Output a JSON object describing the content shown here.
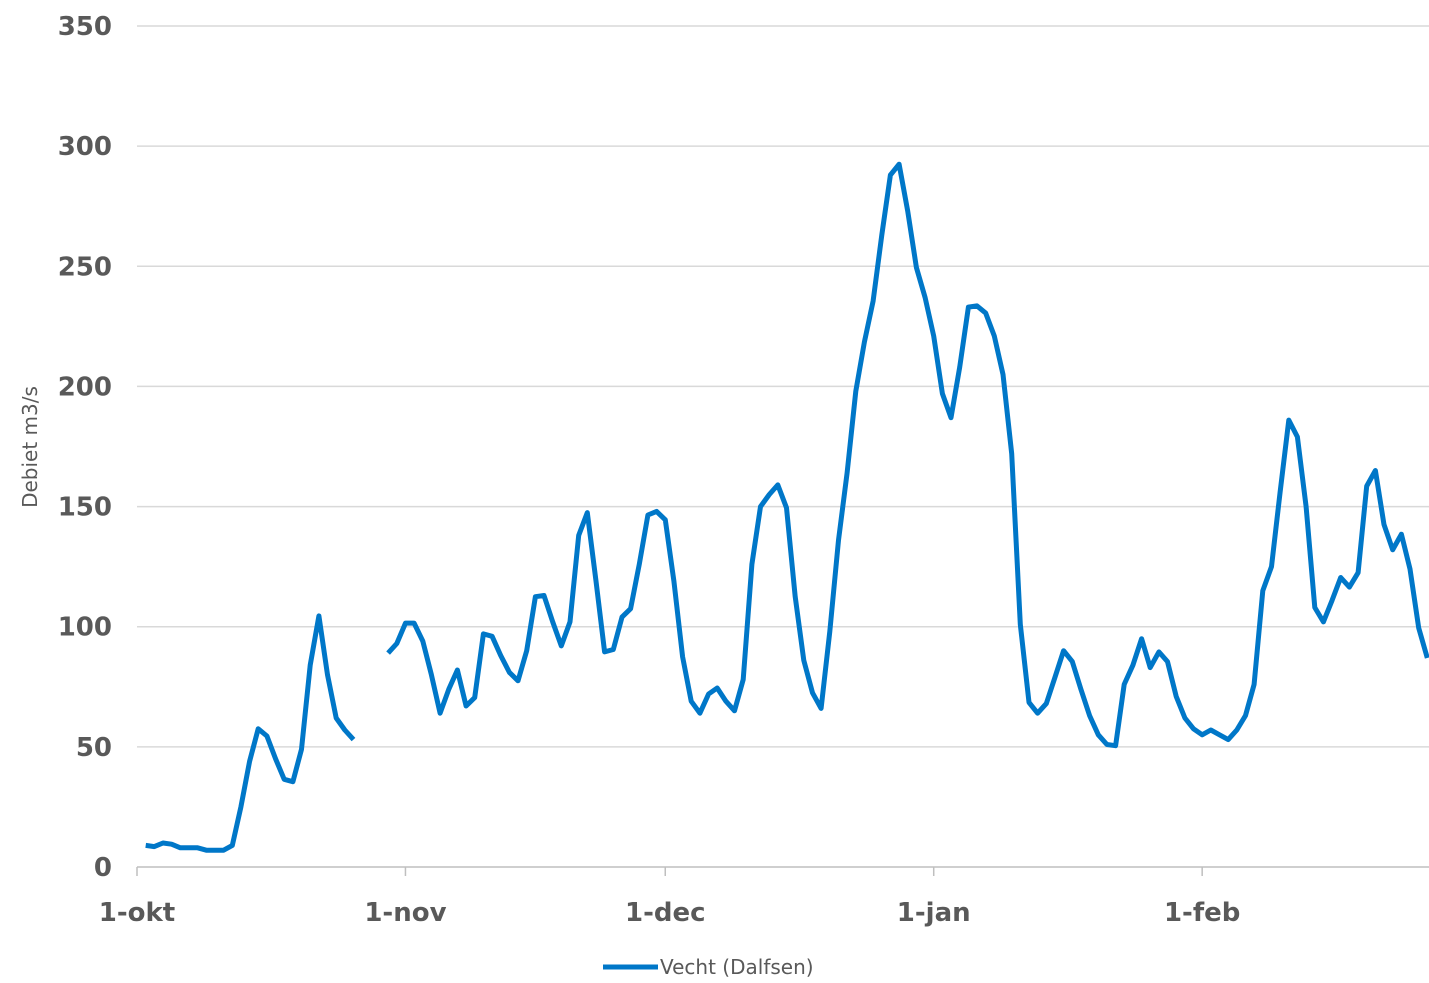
{
  "chart_data": {
    "type": "line",
    "title": "",
    "xlabel": "",
    "ylabel": "Debiet m3/s",
    "ylim": [
      0,
      350
    ],
    "yticks": [
      0,
      50,
      100,
      150,
      200,
      250,
      300,
      350
    ],
    "xlim": [
      "2019-10-01",
      "2020-02-28"
    ],
    "xticks": [
      {
        "label": "1-okt",
        "date": "2019-10-01"
      },
      {
        "label": "1-nov",
        "date": "2019-11-01"
      },
      {
        "label": "1-dec",
        "date": "2019-12-01"
      },
      {
        "label": "1-jan",
        "date": "2020-01-01"
      },
      {
        "label": "1-feb",
        "date": "2020-02-01"
      }
    ],
    "grid": "horizontal",
    "legend_position": "bottom",
    "line_color": "#0077c8",
    "grid_color": "#d9d9d9",
    "axis_color": "#bfbfbf",
    "series": [
      {
        "name": "Vecht (Dalfsen)",
        "color": "#0077c8",
        "points": [
          [
            "2019-10-02",
            9
          ],
          [
            "2019-10-03",
            8.5
          ],
          [
            "2019-10-04",
            10
          ],
          [
            "2019-10-05",
            9.5
          ],
          [
            "2019-10-06",
            8
          ],
          [
            "2019-10-07",
            8
          ],
          [
            "2019-10-08",
            8
          ],
          [
            "2019-10-09",
            7
          ],
          [
            "2019-10-10",
            7
          ],
          [
            "2019-10-11",
            7
          ],
          [
            "2019-10-12",
            9
          ],
          [
            "2019-10-13",
            25
          ],
          [
            "2019-10-14",
            44
          ],
          [
            "2019-10-15",
            57.5
          ],
          [
            "2019-10-16",
            54.5
          ],
          [
            "2019-10-17",
            45
          ],
          [
            "2019-10-18",
            36.5
          ],
          [
            "2019-10-19",
            35.5
          ],
          [
            "2019-10-20",
            49
          ],
          [
            "2019-10-21",
            84
          ],
          [
            "2019-10-22",
            104.5
          ],
          [
            "2019-10-23",
            80
          ],
          [
            "2019-10-24",
            62
          ],
          [
            "2019-10-25",
            57
          ],
          [
            "2019-10-26",
            53
          ],
          null,
          [
            "2019-10-30",
            89
          ],
          [
            "2019-10-31",
            93
          ],
          [
            "2019-11-01",
            101.5
          ],
          [
            "2019-11-02",
            101.5
          ],
          [
            "2019-11-03",
            94
          ],
          [
            "2019-11-04",
            80
          ],
          [
            "2019-11-05",
            64
          ],
          [
            "2019-11-06",
            74
          ],
          [
            "2019-11-07",
            82
          ],
          [
            "2019-11-08",
            67
          ],
          [
            "2019-11-09",
            70.5
          ],
          [
            "2019-11-10",
            97
          ],
          [
            "2019-11-11",
            96
          ],
          [
            "2019-11-12",
            88
          ],
          [
            "2019-11-13",
            81
          ],
          [
            "2019-11-14",
            77.5
          ],
          [
            "2019-11-15",
            90
          ],
          [
            "2019-11-16",
            112.5
          ],
          [
            "2019-11-17",
            113
          ],
          [
            "2019-11-18",
            102
          ],
          [
            "2019-11-19",
            92
          ],
          [
            "2019-11-20",
            102
          ],
          [
            "2019-11-21",
            138
          ],
          [
            "2019-11-22",
            147.5
          ],
          [
            "2019-11-23",
            119
          ],
          [
            "2019-11-24",
            89.5
          ],
          [
            "2019-11-25",
            90.5
          ],
          [
            "2019-11-26",
            104
          ],
          [
            "2019-11-27",
            107.5
          ],
          [
            "2019-11-28",
            126
          ],
          [
            "2019-11-29",
            146.5
          ],
          [
            "2019-11-30",
            148
          ],
          [
            "2019-12-01",
            144.5
          ],
          [
            "2019-12-02",
            119
          ],
          [
            "2019-12-03",
            87.5
          ],
          [
            "2019-12-04",
            69
          ],
          [
            "2019-12-05",
            64
          ],
          [
            "2019-12-06",
            72
          ],
          [
            "2019-12-07",
            74.5
          ],
          [
            "2019-12-08",
            69
          ],
          [
            "2019-12-09",
            65
          ],
          [
            "2019-12-10",
            78
          ],
          [
            "2019-12-11",
            126
          ],
          [
            "2019-12-12",
            150
          ],
          [
            "2019-12-13",
            155
          ],
          [
            "2019-12-14",
            159
          ],
          [
            "2019-12-15",
            149.5
          ],
          [
            "2019-12-16",
            112.5
          ],
          [
            "2019-12-17",
            86
          ],
          [
            "2019-12-18",
            72.5
          ],
          [
            "2019-12-19",
            66
          ],
          [
            "2019-12-20",
            98
          ],
          [
            "2019-12-21",
            136
          ],
          [
            "2019-12-22",
            164
          ],
          [
            "2019-12-23",
            198
          ],
          [
            "2019-12-24",
            218.5
          ],
          [
            "2019-12-25",
            235.5
          ],
          [
            "2019-12-26",
            263
          ],
          [
            "2019-12-27",
            288
          ],
          [
            "2019-12-28",
            292.5
          ],
          [
            "2019-12-29",
            273
          ],
          [
            "2019-12-30",
            249.5
          ],
          [
            "2019-12-31",
            237
          ],
          [
            "2020-01-01",
            221
          ],
          [
            "2020-01-02",
            197
          ],
          [
            "2020-01-03",
            187
          ],
          [
            "2020-01-04",
            208
          ],
          [
            "2020-01-05",
            233
          ],
          [
            "2020-01-06",
            233.5
          ],
          [
            "2020-01-07",
            230.5
          ],
          [
            "2020-01-08",
            221
          ],
          [
            "2020-01-09",
            205
          ],
          [
            "2020-01-10",
            172
          ],
          [
            "2020-01-11",
            101
          ],
          [
            "2020-01-12",
            68.5
          ],
          [
            "2020-01-13",
            64
          ],
          [
            "2020-01-14",
            68
          ],
          [
            "2020-01-15",
            79
          ],
          [
            "2020-01-16",
            90
          ],
          [
            "2020-01-17",
            85.5
          ],
          [
            "2020-01-18",
            74
          ],
          [
            "2020-01-19",
            63
          ],
          [
            "2020-01-20",
            55
          ],
          [
            "2020-01-21",
            51
          ],
          [
            "2020-01-22",
            50.5
          ],
          [
            "2020-01-23",
            76
          ],
          [
            "2020-01-24",
            84
          ],
          [
            "2020-01-25",
            95
          ],
          [
            "2020-01-26",
            83
          ],
          [
            "2020-01-27",
            89.5
          ],
          [
            "2020-01-28",
            85.5
          ],
          [
            "2020-01-29",
            71
          ],
          [
            "2020-01-30",
            62
          ],
          [
            "2020-01-31",
            57.5
          ],
          [
            "2020-02-01",
            55
          ],
          [
            "2020-02-02",
            57
          ],
          [
            "2020-02-03",
            55
          ],
          [
            "2020-02-04",
            53
          ],
          [
            "2020-02-05",
            57
          ],
          [
            "2020-02-06",
            63
          ],
          [
            "2020-02-07",
            76
          ],
          [
            "2020-02-08",
            115
          ],
          [
            "2020-02-09",
            125
          ],
          [
            "2020-02-10",
            156
          ],
          [
            "2020-02-11",
            186
          ],
          [
            "2020-02-12",
            179
          ],
          [
            "2020-02-13",
            150
          ],
          [
            "2020-02-14",
            108
          ],
          [
            "2020-02-15",
            102
          ],
          [
            "2020-02-16",
            111
          ],
          [
            "2020-02-17",
            120.5
          ],
          [
            "2020-02-18",
            116.5
          ],
          [
            "2020-02-19",
            122.5
          ],
          [
            "2020-02-20",
            158.5
          ],
          [
            "2020-02-21",
            165
          ],
          [
            "2020-02-22",
            142.5
          ],
          [
            "2020-02-23",
            132
          ],
          [
            "2020-02-24",
            138.5
          ],
          [
            "2020-02-25",
            124
          ],
          [
            "2020-02-26",
            99.5
          ],
          [
            "2020-02-27",
            87
          ]
        ]
      }
    ]
  }
}
